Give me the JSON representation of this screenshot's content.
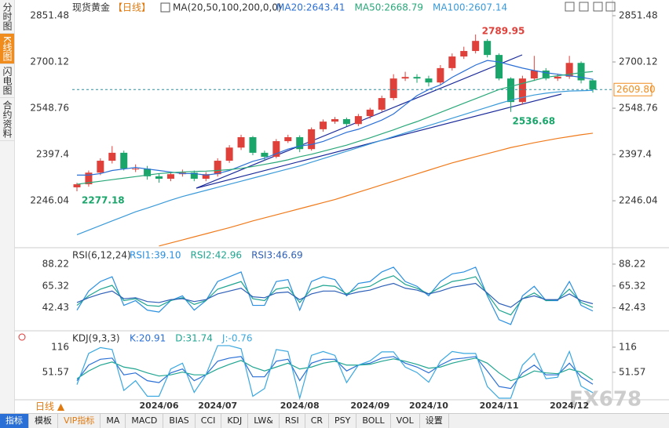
{
  "chart_data": [
    {
      "type": "candlestick",
      "title": "现货黄金",
      "period": "【日线】",
      "indicator": "MA(20,50,100,200,0,0)",
      "categories": [
        "",
        null,
        null,
        null,
        null,
        null,
        null,
        "2024/06",
        null,
        null,
        null,
        null,
        "2024/07",
        null,
        null,
        null,
        null,
        null,
        null,
        "2024/08",
        null,
        null,
        null,
        null,
        null,
        "2024/09",
        null,
        null,
        null,
        null,
        "2024/10",
        null,
        null,
        null,
        null,
        null,
        "2024/11",
        null,
        null,
        null,
        null,
        null,
        "2024/12",
        null,
        null
      ],
      "open": [
        2290,
        2300,
        2338,
        2377,
        2403,
        2351,
        2351,
        2326,
        2318,
        2333,
        2338,
        2318,
        2333,
        2377,
        2420,
        2454,
        2403,
        2390,
        2441,
        2454,
        2415,
        2480,
        2505,
        2513,
        2497,
        2523,
        2544,
        2582,
        2646,
        2651,
        2646,
        2633,
        2680,
        2718,
        2736,
        2769,
        2723,
        2646,
        2569,
        2646,
        2672,
        2646,
        2652,
        2697,
        2640
      ],
      "high": [
        2305,
        2345,
        2385,
        2425,
        2410,
        2365,
        2360,
        2335,
        2340,
        2348,
        2345,
        2340,
        2385,
        2428,
        2462,
        2458,
        2410,
        2448,
        2462,
        2460,
        2486,
        2512,
        2520,
        2518,
        2530,
        2550,
        2590,
        2660,
        2668,
        2660,
        2655,
        2690,
        2728,
        2750,
        2789.95,
        2775,
        2728,
        2650,
        2655,
        2720,
        2680,
        2662,
        2720,
        2702,
        2645
      ],
      "low": [
        2277.18,
        2292,
        2330,
        2368,
        2345,
        2340,
        2315,
        2305,
        2310,
        2325,
        2310,
        2310,
        2325,
        2370,
        2412,
        2395,
        2378,
        2385,
        2435,
        2405,
        2410,
        2472,
        2498,
        2490,
        2490,
        2515,
        2538,
        2575,
        2638,
        2632,
        2620,
        2625,
        2672,
        2710,
        2728,
        2715,
        2640,
        2536.68,
        2560,
        2638,
        2640,
        2638,
        2645,
        2630,
        2600
      ],
      "close": [
        2300,
        2338,
        2377,
        2403,
        2351,
        2351,
        2326,
        2318,
        2333,
        2338,
        2318,
        2333,
        2377,
        2420,
        2454,
        2403,
        2390,
        2441,
        2454,
        2415,
        2480,
        2505,
        2513,
        2497,
        2523,
        2544,
        2582,
        2646,
        2651,
        2646,
        2633,
        2680,
        2718,
        2736,
        2769,
        2723,
        2646,
        2569,
        2646,
        2672,
        2646,
        2652,
        2697,
        2640,
        2609.8
      ],
      "up_color": "#e0403a",
      "down_color": "#1aa56b",
      "series": [
        {
          "name": "MA20:2643.41",
          "color": "#2a6fd6",
          "values": [
            2330,
            2330,
            2335,
            2345,
            2350,
            2355,
            2350,
            2345,
            2340,
            2335,
            2335,
            2330,
            2335,
            2345,
            2360,
            2375,
            2385,
            2400,
            2415,
            2425,
            2430,
            2440,
            2455,
            2470,
            2480,
            2495,
            2510,
            2530,
            2560,
            2590,
            2610,
            2625,
            2650,
            2670,
            2690,
            2705,
            2700,
            2690,
            2680,
            2672,
            2665,
            2660,
            2655,
            2650,
            2643.41
          ]
        },
        {
          "name": "MA50:2668.79",
          "color": "#2aa87a",
          "values": [
            2300,
            2305,
            2310,
            2315,
            2320,
            2325,
            2330,
            2335,
            2338,
            2340,
            2342,
            2343,
            2345,
            2348,
            2352,
            2358,
            2365,
            2372,
            2380,
            2390,
            2398,
            2408,
            2418,
            2428,
            2440,
            2452,
            2465,
            2478,
            2492,
            2505,
            2520,
            2535,
            2550,
            2565,
            2580,
            2595,
            2610,
            2620,
            2630,
            2640,
            2650,
            2655,
            2660,
            2665,
            2668.79
          ]
        },
        {
          "name": "MA100:2607.14",
          "color": "#3a9ad9",
          "values": [
            2135,
            2150,
            2165,
            2180,
            2195,
            2210,
            2222,
            2235,
            2248,
            2260,
            2270,
            2280,
            2290,
            2300,
            2310,
            2320,
            2330,
            2340,
            2350,
            2360,
            2372,
            2384,
            2396,
            2408,
            2420,
            2432,
            2444,
            2456,
            2468,
            2480,
            2492,
            2504,
            2516,
            2528,
            2540,
            2552,
            2564,
            2575,
            2584,
            2592,
            2598,
            2602,
            2605,
            2606,
            2607.14
          ]
        },
        {
          "color": "#f07a1a",
          "values": [
            null,
            null,
            null,
            null,
            null,
            null,
            null,
            2098,
            2108,
            2118,
            2128,
            2138,
            2148,
            2158,
            2169,
            2180,
            2190,
            2200,
            2210,
            2220,
            2230,
            2240,
            2250,
            2262,
            2274,
            2286,
            2298,
            2310,
            2322,
            2334,
            2346,
            2358,
            2370,
            2380,
            2390,
            2400,
            2410,
            2420,
            2428,
            2436,
            2443,
            2450,
            2456,
            2462,
            2467
          ]
        }
      ],
      "last_price": {
        "value": 2609.8,
        "label": "2609.80"
      },
      "ylim": [
        2095,
        2890
      ],
      "yticks": [
        2851.48,
        2700.12,
        2548.76,
        2397.4,
        2246.04
      ],
      "grid": false
    },
    {
      "type": "line",
      "title": "RSI(6,12,24)",
      "series": [
        {
          "name": "RSI1:39.10",
          "color": "#2a8fe0",
          "values": [
            40,
            60,
            70,
            75,
            45,
            50,
            40,
            38,
            50,
            55,
            40,
            50,
            70,
            75,
            80,
            45,
            45,
            70,
            72,
            40,
            70,
            75,
            72,
            55,
            68,
            70,
            80,
            85,
            70,
            65,
            55,
            70,
            78,
            80,
            85,
            55,
            30,
            25,
            55,
            65,
            50,
            50,
            70,
            45,
            39.1
          ]
        },
        {
          "name": "RSI2:42.96",
          "color": "#1fa590",
          "values": [
            45,
            55,
            62,
            66,
            50,
            52,
            45,
            44,
            50,
            53,
            46,
            50,
            62,
            66,
            70,
            52,
            50,
            62,
            64,
            48,
            62,
            66,
            65,
            57,
            63,
            65,
            72,
            76,
            67,
            63,
            57,
            64,
            70,
            72,
            75,
            57,
            40,
            35,
            52,
            58,
            50,
            51,
            62,
            48,
            42.96
          ]
        },
        {
          "name": "RSI3:46.69",
          "color": "#2d5fb8",
          "values": [
            48,
            53,
            57,
            60,
            52,
            53,
            49,
            48,
            51,
            52,
            49,
            51,
            57,
            60,
            63,
            54,
            53,
            58,
            59,
            51,
            57,
            60,
            60,
            56,
            59,
            61,
            65,
            68,
            63,
            61,
            57,
            60,
            64,
            66,
            68,
            58,
            47,
            43,
            52,
            55,
            51,
            51,
            57,
            50,
            46.69
          ]
        }
      ],
      "ylim": [
        20,
        100.5
      ],
      "yticks": [
        88.22,
        65.32,
        42.43
      ],
      "grid": false
    },
    {
      "type": "line",
      "title": "KDJ(9,3,3)",
      "series": [
        {
          "name": "K:20.91",
          "color": "#2a6fd6",
          "values": [
            30,
            70,
            85,
            88,
            45,
            50,
            30,
            25,
            50,
            60,
            30,
            45,
            80,
            88,
            92,
            40,
            40,
            80,
            85,
            30,
            75,
            85,
            85,
            55,
            70,
            75,
            88,
            92,
            75,
            65,
            50,
            70,
            85,
            88,
            92,
            55,
            15,
            10,
            50,
            70,
            45,
            45,
            75,
            40,
            20.91
          ]
        },
        {
          "name": "D:31.74",
          "color": "#1fa590",
          "values": [
            35,
            55,
            70,
            78,
            65,
            60,
            50,
            42,
            45,
            52,
            45,
            45,
            60,
            72,
            82,
            65,
            55,
            65,
            75,
            60,
            65,
            75,
            80,
            70,
            70,
            72,
            80,
            86,
            80,
            72,
            62,
            65,
            75,
            82,
            88,
            75,
            50,
            30,
            40,
            55,
            50,
            48,
            60,
            52,
            31.74
          ]
        },
        {
          "name": "J:-0.76",
          "color": "#3aa8e0",
          "values": [
            20,
            100,
            115,
            110,
            5,
            30,
            -10,
            -10,
            60,
            75,
            0,
            45,
            120,
            120,
            112,
            -10,
            10,
            110,
            105,
            -15,
            95,
            105,
            95,
            25,
            70,
            81,
            104,
            104,
            65,
            51,
            26,
            80,
            105,
            100,
            100,
            15,
            -15,
            -15,
            70,
            100,
            35,
            39,
            105,
            16,
            -0.76
          ]
        }
      ],
      "ylim": [
        -15,
        146
      ],
      "yticks": [
        116.0,
        51.57
      ],
      "grid": false
    }
  ],
  "ui": {
    "sidebar": [
      "分时图",
      "K线图",
      "闪电图",
      "合约资料"
    ],
    "period_button": "日线 ▲",
    "watermark": "FX678",
    "toolbar": [
      "指标",
      "模板",
      "VIP指标",
      "MA",
      "MACD",
      "BIAS",
      "CCI",
      "KDJ",
      "LW&",
      "RSI",
      "CR",
      "PSY",
      "BOLL",
      "VOL",
      "设置"
    ]
  }
}
